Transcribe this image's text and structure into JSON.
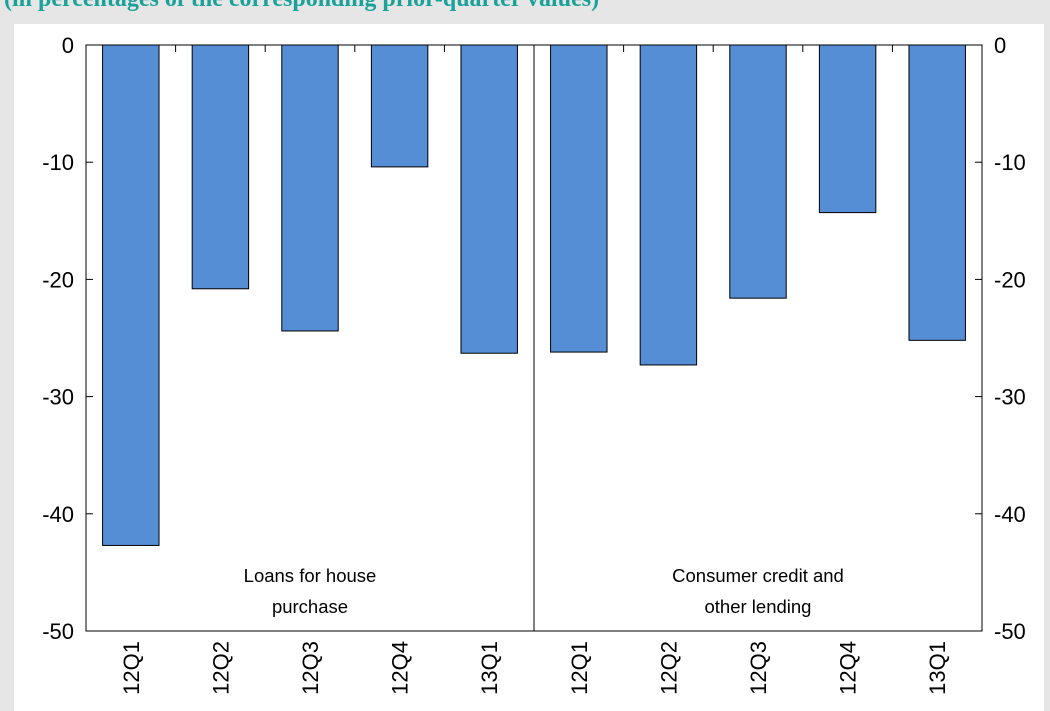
{
  "header": {
    "text": "(in percentages of the corresponding prior-quarter values)"
  },
  "chart_data": {
    "type": "bar",
    "title": "",
    "xlabel": "",
    "ylabel": "",
    "ylim": [
      -50,
      0
    ],
    "yticks": [
      0,
      -10,
      -20,
      -30,
      -40,
      -50
    ],
    "y_axis_sides": "left-and-right",
    "grid": false,
    "bar_color": "#558ed5",
    "groups": [
      {
        "label": "Loans for house purchase",
        "label_lines": [
          "Loans for house",
          "purchase"
        ],
        "categories": [
          "12Q1",
          "12Q2",
          "12Q3",
          "12Q4",
          "13Q1"
        ],
        "values": [
          -42.7,
          -20.8,
          -24.4,
          -10.4,
          -26.3
        ]
      },
      {
        "label": "Consumer credit and other lending",
        "label_lines": [
          "Consumer credit and",
          "other lending"
        ],
        "categories": [
          "12Q1",
          "12Q2",
          "12Q3",
          "12Q4",
          "13Q1"
        ],
        "values": [
          -26.2,
          -27.3,
          -21.6,
          -14.3,
          -25.2
        ]
      }
    ]
  }
}
